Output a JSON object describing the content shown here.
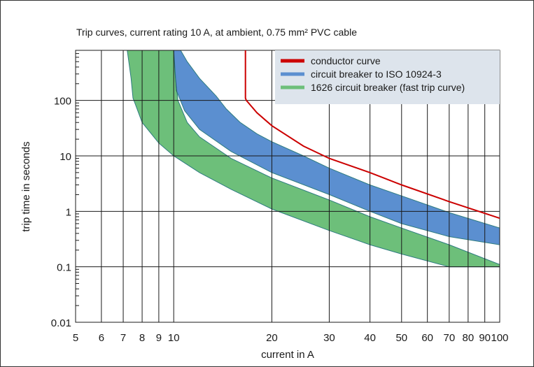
{
  "chart_data": {
    "type": "area",
    "title": "Trip curves, current rating 10 A, at ambient, 0.75 mm² PVC cable",
    "xlabel": "current in A",
    "ylabel": "trip time in seconds",
    "x_scale": "log",
    "y_scale": "log",
    "xlim": [
      5,
      100
    ],
    "ylim": [
      0.01,
      800
    ],
    "x_ticks": [
      5,
      6,
      7,
      8,
      9,
      10,
      20,
      30,
      40,
      50,
      60,
      70,
      80,
      90,
      100
    ],
    "x_tick_labels": [
      "5",
      "6",
      "7",
      "8",
      "9",
      "10",
      "20",
      "30",
      "40",
      "50",
      "60",
      "70",
      "80",
      "90",
      "100"
    ],
    "y_ticks": [
      0.01,
      0.1,
      1,
      10,
      100
    ],
    "y_tick_labels": [
      "0.01",
      "0.1",
      "1",
      "10",
      "100"
    ],
    "grid": true,
    "legend_position": "top-right",
    "series": [
      {
        "name": "conductor curve",
        "kind": "line",
        "color": "#cc0000",
        "x": [
          16.6,
          16.6,
          16.7,
          18,
          20,
          25,
          30,
          40,
          50,
          70,
          100
        ],
        "y": [
          800,
          110,
          100,
          60,
          35,
          15,
          9,
          5,
          3,
          1.5,
          0.75
        ]
      },
      {
        "name": "circuit breaker to ISO 10924-3",
        "kind": "band",
        "color": "#5b8fd0",
        "upper": {
          "x": [
            10.5,
            11,
            12,
            13.5,
            14.5,
            16,
            18,
            20,
            25,
            30,
            40,
            50,
            70,
            100
          ],
          "y": [
            800,
            500,
            250,
            120,
            70,
            40,
            25,
            18,
            10,
            6,
            3,
            1.9,
            0.95,
            0.5
          ]
        },
        "lower": {
          "x": [
            10,
            10.2,
            10.8,
            12,
            15,
            20,
            30,
            40,
            50,
            70,
            100
          ],
          "y": [
            800,
            150,
            65,
            30,
            12,
            5,
            2,
            1,
            0.6,
            0.35,
            0.25
          ]
        }
      },
      {
        "name": "1626 circuit breaker (fast trip curve)",
        "kind": "band",
        "color": "#6dbf7a",
        "upper": {
          "x": [
            10,
            10.1,
            10.3,
            11,
            12,
            15,
            20,
            30,
            40,
            50,
            70,
            100
          ],
          "y": [
            800,
            300,
            100,
            40,
            22,
            9,
            4,
            1.6,
            0.8,
            0.5,
            0.25,
            0.11
          ]
        },
        "lower": {
          "x": [
            7.2,
            7.4,
            7.5,
            7.6,
            8,
            9,
            10,
            12,
            15,
            20,
            30,
            40,
            50,
            70,
            100
          ],
          "y": [
            800,
            250,
            110,
            90,
            40,
            17,
            10,
            5,
            2.5,
            1.1,
            0.45,
            0.25,
            0.17,
            0.1,
            0.1
          ]
        }
      }
    ]
  }
}
